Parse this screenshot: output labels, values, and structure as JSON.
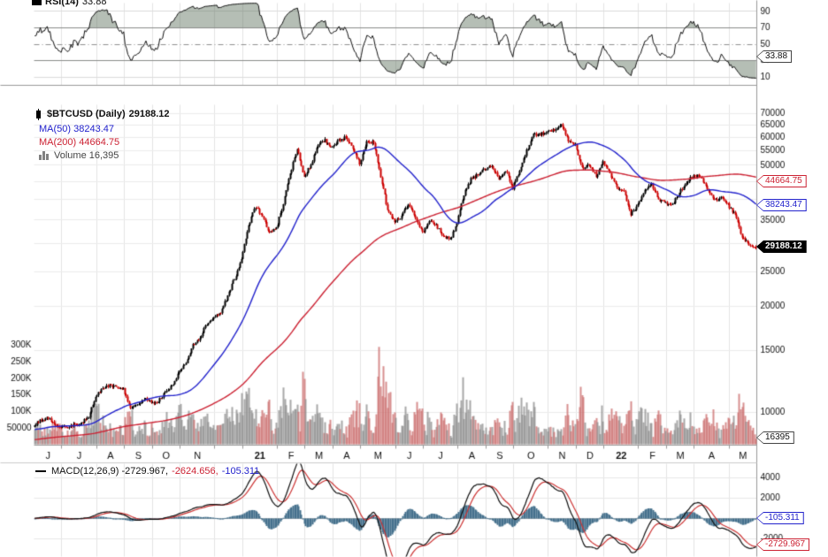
{
  "chart_data": {
    "type": "candlestick",
    "symbol": "$BTCUSD",
    "timeframe": "Daily",
    "panels": [
      "RSI(14)",
      "price+volume",
      "MACD(12,26,9)"
    ],
    "rsi": {
      "period": 14,
      "current": 33.88,
      "yticks": [
        90,
        70,
        50,
        30,
        10
      ],
      "levels": {
        "overbought": 70,
        "midline": 50,
        "oversold": 30
      },
      "ylim": [
        0,
        100
      ]
    },
    "price": {
      "last": 29188.12,
      "ma50": 38243.47,
      "ma200": 44664.75,
      "scale": "log",
      "yticks": [
        70000,
        65000,
        60000,
        55000,
        50000,
        35000,
        25000,
        20000,
        15000,
        10000
      ],
      "ylim_approx": [
        8000,
        72000
      ],
      "x_labels": [
        "J",
        "J",
        "A",
        "S",
        "O",
        "N",
        "",
        "21",
        "F",
        "M",
        "A",
        "M",
        "J",
        "J",
        "A",
        "S",
        "O",
        "N",
        "D",
        "22",
        "F",
        "M",
        "A",
        "M"
      ],
      "weeks_per_month": [
        4,
        5,
        4,
        4,
        4,
        5,
        4,
        5,
        4,
        4,
        4,
        5,
        4,
        5,
        4,
        4,
        5,
        4,
        4,
        5,
        4,
        4,
        5,
        4
      ],
      "weekly_close": [
        9450,
        9700,
        9250,
        9150,
        9100,
        9250,
        9300,
        9750,
        11050,
        11750,
        11900,
        11850,
        11650,
        10300,
        10450,
        10950,
        10700,
        10750,
        11350,
        11900,
        13050,
        13800,
        15500,
        16300,
        17750,
        18650,
        19150,
        21400,
        23900,
        27000,
        33900,
        38250,
        35850,
        32100,
        33100,
        38850,
        47150,
        55950,
        46300,
        50400,
        57350,
        58900,
        55800,
        58750,
        59950,
        56200,
        50500,
        57850,
        58250,
        46450,
        37300,
        34650,
        35800,
        39000,
        35550,
        32200,
        34650,
        33800,
        31550,
        30850,
        34250,
        41500,
        45600,
        47100,
        48850,
        49950,
        46050,
        48300,
        43150,
        48200,
        54950,
        60900,
        61300,
        61850,
        63250,
        65500,
        58650,
        57250,
        49250,
        50100,
        46700,
        50850,
        47300,
        43100,
        41900,
        36250,
        38500,
        42400,
        44200,
        40100,
        39150,
        38850,
        41950,
        44550,
        46850,
        46400,
        42800,
        39700,
        40400,
        38600,
        36050,
        31300,
        29850,
        29188.12
      ]
    },
    "volume": {
      "current": 16395,
      "yticks_labels": [
        "300K",
        "250K",
        "200K",
        "150K",
        "100K",
        "50000"
      ],
      "yticks_values": [
        300000,
        250000,
        200000,
        150000,
        100000,
        50000
      ],
      "spike_max": 295000
    },
    "macd": {
      "params": [
        12,
        26,
        9
      ],
      "macd": -2729.967,
      "signal": -2624.656,
      "histogram": -105.311,
      "yticks": [
        4000,
        2000,
        -2000
      ]
    }
  },
  "legend": {
    "rsi_label": "RSI(14)",
    "rsi_value": "33.88",
    "price_label": "$BTCUSD (Daily)",
    "price_value": "29188.12",
    "ma50_label": "MA(50) 38243.47",
    "ma200_label": "MA(200) 44664.75",
    "volume_label": "Volume 16,395",
    "macd_label": "MACD(12,26,9) -2729.967,",
    "macd_signal_value": "-2624.656,",
    "macd_hist_value": "-105.311"
  },
  "axis_tags": {
    "rsi": "33.88",
    "ma200": "44664.75",
    "ma50": "38243.47",
    "last": "29188.12",
    "volume": "16395",
    "macd_hist": "-105.311",
    "macd_line": "-2729.967"
  },
  "colors": {
    "ma50": "#2222cc",
    "ma200": "#cc2233",
    "candle_up": "#000000",
    "candle_down": "#cc0000",
    "volume_up": "rgba(140,140,140,0.75)",
    "volume_down": "rgba(205,115,115,0.8)",
    "macd_line": "#111111",
    "macd_signal": "#cc3333",
    "macd_hist": "#44708c",
    "rsi_line": "#111111",
    "rsi_fill": "rgba(90,110,90,0.45)",
    "grid_light": "#e4e4e4",
    "grid_dark": "#909090",
    "last_tag_bg": "#000000"
  }
}
